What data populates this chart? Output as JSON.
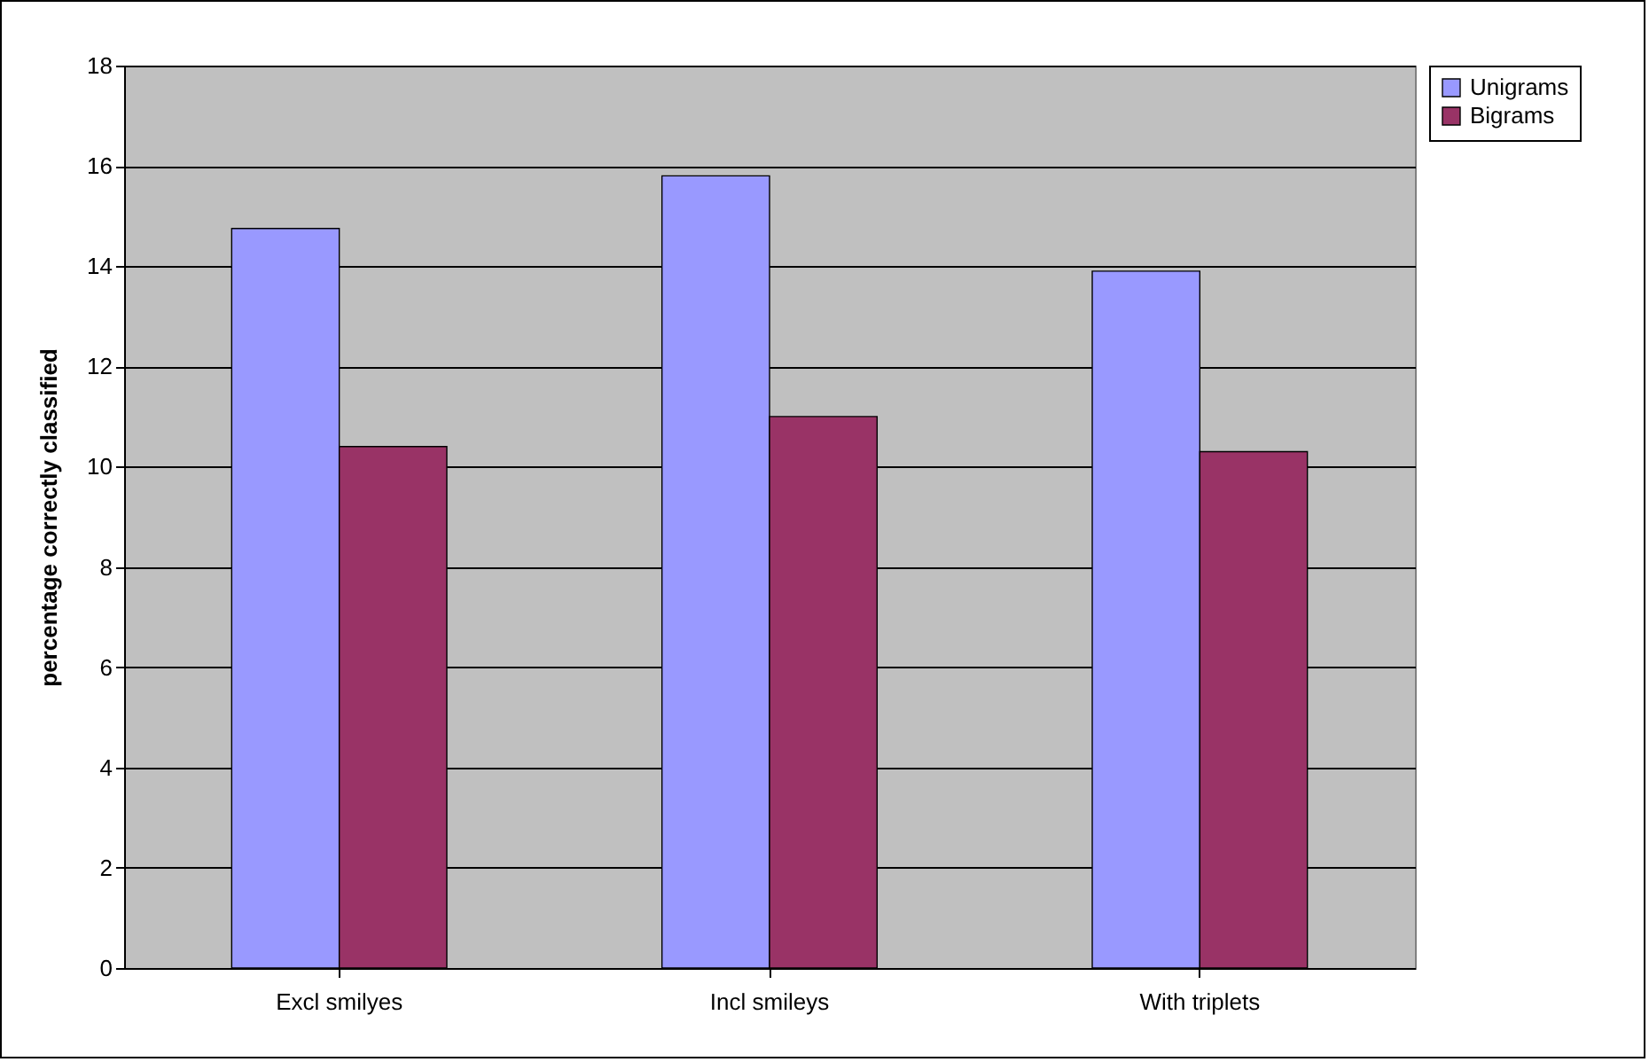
{
  "chart_data": {
    "type": "bar",
    "ylabel": "percentage correctly classified",
    "categories": [
      "Excl smilyes",
      "Incl smileys",
      "With triplets"
    ],
    "series": [
      {
        "name": "Unigrams",
        "color": "#9999ff",
        "values": [
          14.75,
          15.8,
          13.9
        ]
      },
      {
        "name": "Bigrams",
        "color": "#993366",
        "values": [
          10.4,
          11.0,
          10.3
        ]
      }
    ],
    "ylim": [
      0,
      18
    ],
    "yticks": [
      0,
      2,
      4,
      6,
      8,
      10,
      12,
      14,
      16,
      18
    ],
    "grid": "y",
    "legend": "right"
  }
}
